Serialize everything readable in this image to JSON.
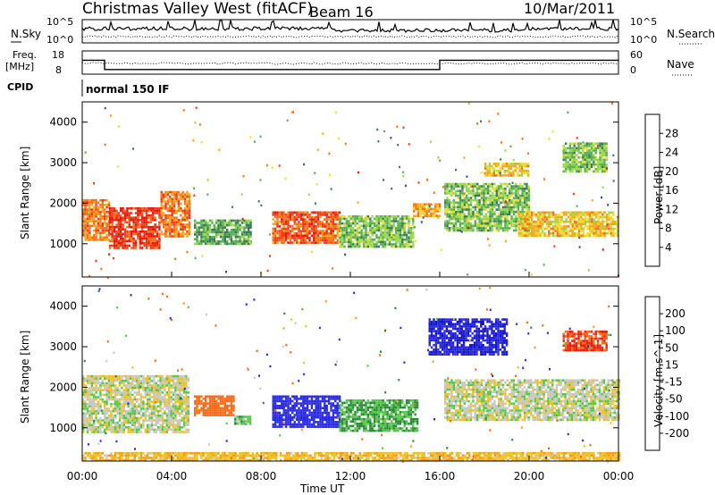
{
  "header": {
    "radar": "Christmas Valley West (fitACF)",
    "beam": "Beam 16",
    "date": "10/Mar/2011"
  },
  "strip_labels": {
    "nsky": "N.Sky",
    "nsearch": "N.Search",
    "freq_line1": "Freq.",
    "freq_line2": "[MHz]",
    "nave": "Nave",
    "cpid": "CPID",
    "cpid_value": "normal 150 IF",
    "noise_left_top": "10^5",
    "noise_left_bottom": "10^0",
    "noise_right_top": "10^5",
    "noise_right_bottom": "10^0",
    "freq_top": "18",
    "freq_bottom": "8",
    "nave_top": "60",
    "nave_bottom": "0"
  },
  "axes": {
    "xlabel": "Time UT",
    "ylabel": "Slant Range [km]",
    "x_ticks": [
      "00:00",
      "04:00",
      "08:00",
      "12:00",
      "16:00",
      "20:00",
      "00:00"
    ],
    "y_ticks": [
      "1000",
      "2000",
      "3000",
      "4000"
    ]
  },
  "colorbars": {
    "power": {
      "label": "Power [dB]",
      "ticks": [
        "4",
        "8",
        "12",
        "16",
        "20",
        "24",
        "28"
      ],
      "colors": [
        "#1c1cdc",
        "#2b4ea8",
        "#3a7a5a",
        "#55b055",
        "#9ad84a",
        "#f0dc30",
        "#f6a51c",
        "#f5711a",
        "#ee3a18",
        "#e6140c"
      ]
    },
    "velocity": {
      "label": "Velocity [m s^-1]",
      "ticks": [
        "200",
        "100",
        "50",
        "15",
        "-15",
        "-50",
        "-100",
        "-200"
      ],
      "colors": [
        "#1414c8",
        "#2a2ae0",
        "#2a8a3a",
        "#55c84a",
        "#c8c8c0",
        "#c8c8c0",
        "#f0c020",
        "#f59a1a",
        "#f56a18",
        "#e81e0c"
      ]
    }
  },
  "chart_data": {
    "type": "heatmap",
    "x_range_hours": [
      0,
      24
    ],
    "y_range_km": [
      180,
      4500
    ],
    "frequency_steps_mhz": [
      {
        "from_h": 0,
        "to_h": 1,
        "freq": 14
      },
      {
        "from_h": 1,
        "to_h": 16,
        "freq": 10
      },
      {
        "from_h": 16,
        "to_h": 24,
        "freq": 14
      }
    ],
    "power_regions": [
      {
        "t0": 0,
        "t1": 1.2,
        "r0": 1100,
        "r1": 2100,
        "db": 22
      },
      {
        "t0": 1.2,
        "t1": 3.5,
        "r0": 900,
        "r1": 1900,
        "db": 26
      },
      {
        "t0": 3.5,
        "t1": 4.8,
        "r0": 1200,
        "r1": 2300,
        "db": 22
      },
      {
        "t0": 5,
        "t1": 7.5,
        "r0": 1000,
        "r1": 1600,
        "db": 10
      },
      {
        "t0": 8.5,
        "t1": 11.5,
        "r0": 1000,
        "r1": 1800,
        "db": 24
      },
      {
        "t0": 11.5,
        "t1": 14.8,
        "r0": 900,
        "r1": 1700,
        "db": 12
      },
      {
        "t0": 14.8,
        "t1": 16,
        "r0": 1700,
        "r1": 2000,
        "db": 20
      },
      {
        "t0": 16.2,
        "t1": 20,
        "r0": 1300,
        "r1": 2500,
        "db": 12
      },
      {
        "t0": 19.5,
        "t1": 24,
        "r0": 1200,
        "r1": 1800,
        "db": 18
      },
      {
        "t0": 18,
        "t1": 20,
        "r0": 2700,
        "r1": 3000,
        "db": 18
      },
      {
        "t0": 21.5,
        "t1": 23.5,
        "r0": 2800,
        "r1": 3500,
        "db": 12
      }
    ],
    "velocity_regions": [
      {
        "t0": 0,
        "t1": 4.8,
        "r0": 900,
        "r1": 2300,
        "v": 0
      },
      {
        "t0": 5,
        "t1": 6.8,
        "r0": 1300,
        "r1": 1800,
        "v": -150
      },
      {
        "t0": 6.8,
        "t1": 7.5,
        "r0": 1100,
        "r1": 1300,
        "v": 30
      },
      {
        "t0": 8.5,
        "t1": 11.5,
        "r0": 1000,
        "r1": 1800,
        "v": 150
      },
      {
        "t0": 11.5,
        "t1": 15,
        "r0": 900,
        "r1": 1700,
        "v": 50
      },
      {
        "t0": 15.5,
        "t1": 19,
        "r0": 2800,
        "r1": 3700,
        "v": 200
      },
      {
        "t0": 16.2,
        "t1": 24,
        "r0": 1200,
        "r1": 2200,
        "v": 0
      },
      {
        "t0": 21.5,
        "t1": 23.5,
        "r0": 2900,
        "r1": 3400,
        "v": -200
      },
      {
        "t0": 0,
        "t1": 24,
        "r0": 200,
        "r1": 400,
        "v": -40
      }
    ]
  }
}
